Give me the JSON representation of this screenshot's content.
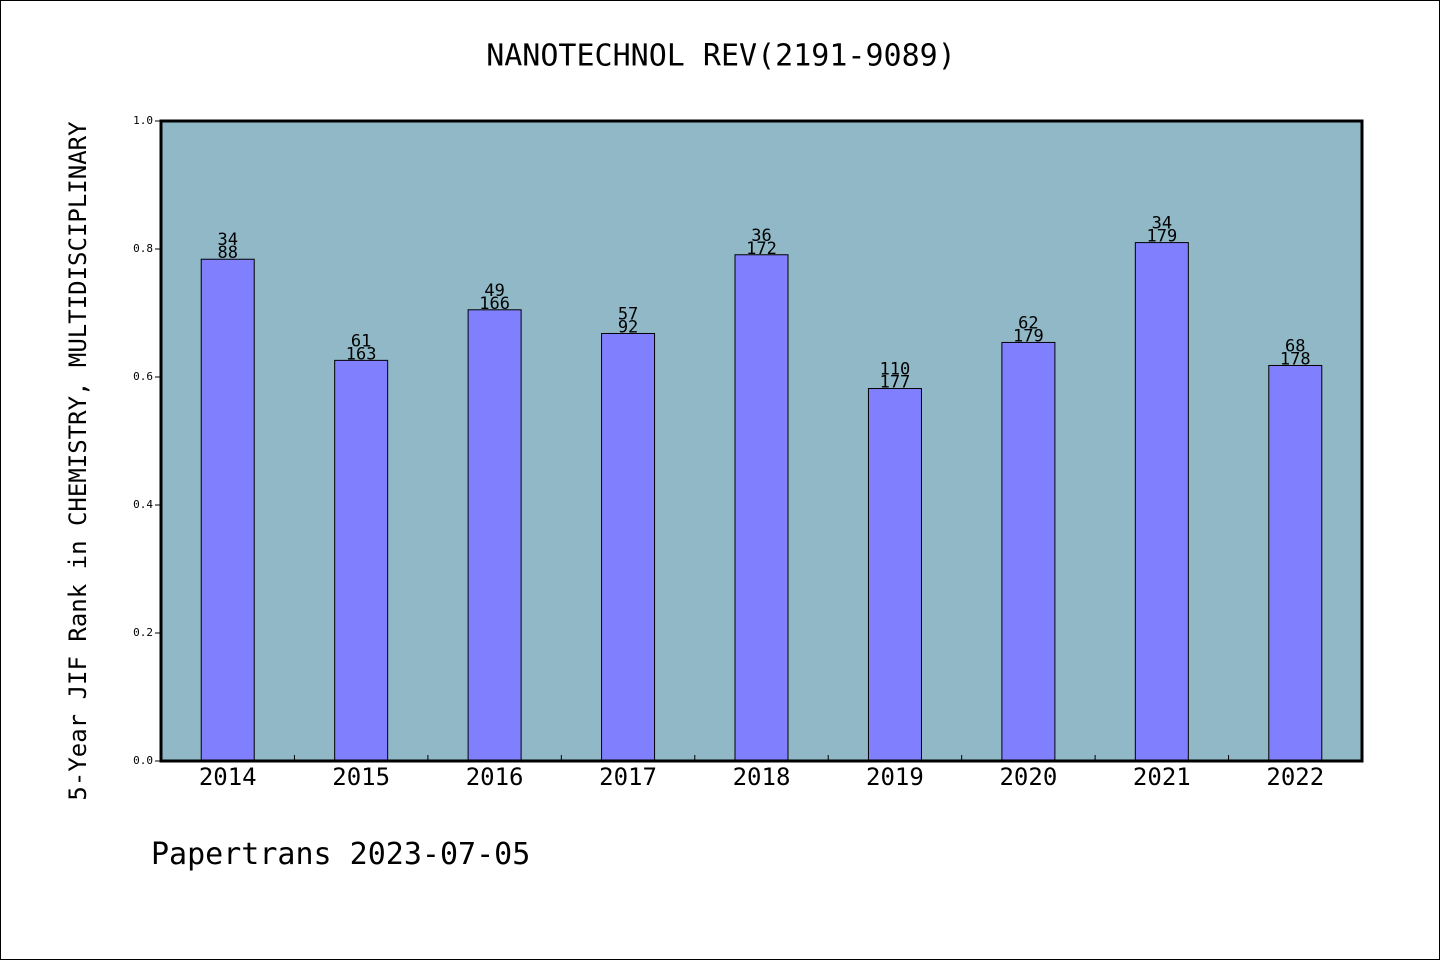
{
  "chart_data": {
    "type": "bar",
    "title": "NANOTECHNOL REV(2191-9089)",
    "ylabel": "5-Year JIF Rank in CHEMISTRY, MULTIDISCIPLINARY",
    "xlabel": "",
    "ylim": [
      0,
      1.0
    ],
    "yticks": [
      "0.0",
      "0.2",
      "0.4",
      "0.6",
      "0.8",
      "1.0"
    ],
    "categories": [
      "2014",
      "2015",
      "2016",
      "2017",
      "2018",
      "2019",
      "2020",
      "2021",
      "2022"
    ],
    "values": [
      0.784,
      0.626,
      0.705,
      0.668,
      0.791,
      0.582,
      0.654,
      0.81,
      0.618
    ],
    "rank": [
      "34",
      "61",
      "49",
      "57",
      "36",
      "110",
      "62",
      "34",
      "68"
    ],
    "total": [
      "88",
      "163",
      "166",
      "92",
      "172",
      "177",
      "179",
      "179",
      "178"
    ],
    "grid": false,
    "legend": "none",
    "colors": {
      "plot_background": "#90b8c6",
      "bar_fill": "#8080ff",
      "bar_stroke": "#000000",
      "axis": "#000000"
    }
  },
  "footer": {
    "text": "Papertrans 2023-07-05"
  }
}
